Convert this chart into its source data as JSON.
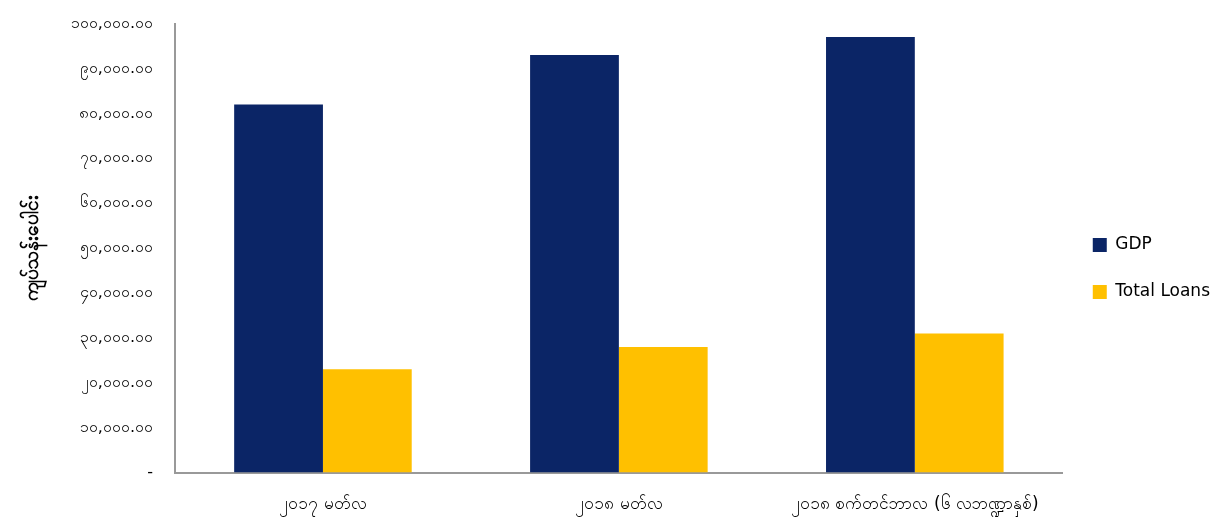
{
  "chart_data": {
    "type": "bar",
    "ylabel": "ကျပ်သန်းပေါင်း",
    "categories": [
      "၂၀၁၇ မတ်လ",
      "၂၀၁၈ မတ်လ",
      "၂၀၁၈ စက်တင်ဘာလ (၆ လဘဏ္ဍာနှစ်)"
    ],
    "series": [
      {
        "name": "GDP",
        "color": "#0b2566",
        "values": [
          82000,
          93000,
          97000
        ]
      },
      {
        "name": "Total Loans",
        "color": "#ffc000",
        "values": [
          23000,
          28000,
          31000
        ]
      }
    ],
    "ylim": [
      0,
      100000
    ],
    "yticks": [
      {
        "value": 0,
        "label": "-"
      },
      {
        "value": 10000,
        "label": "၁၀,၀၀၀.၀၀"
      },
      {
        "value": 20000,
        "label": "၂၀,၀၀၀.၀၀"
      },
      {
        "value": 30000,
        "label": "၃၀,၀၀၀.၀၀"
      },
      {
        "value": 40000,
        "label": "၄၀,၀၀၀.၀၀"
      },
      {
        "value": 50000,
        "label": "၅၀,၀၀၀.၀၀"
      },
      {
        "value": 60000,
        "label": "၆၀,၀၀၀.၀၀"
      },
      {
        "value": 70000,
        "label": "၇၀,၀၀၀.၀၀"
      },
      {
        "value": 80000,
        "label": "၈၀,၀၀၀.၀၀"
      },
      {
        "value": 90000,
        "label": "၉၀,၀၀၀.၀၀"
      },
      {
        "value": 100000,
        "label": "၁၀၀,၀၀၀.၀၀"
      }
    ],
    "grid": false,
    "legend": "right"
  }
}
